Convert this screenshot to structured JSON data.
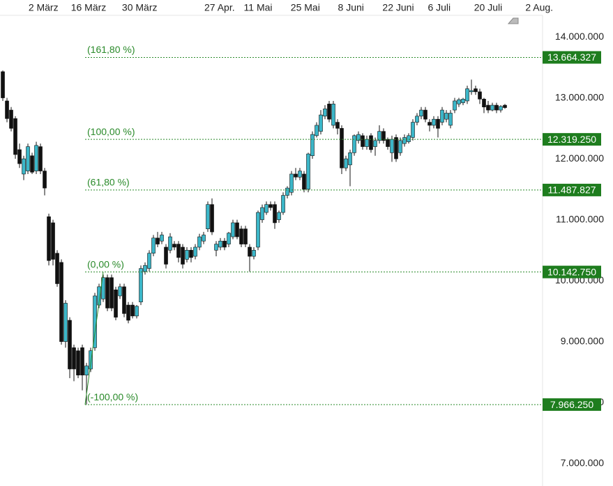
{
  "chart_data": {
    "type": "candlestick",
    "up_color": "#3bb6c8",
    "down_color": "#111111",
    "xlim": [
      -0.67,
      129
    ],
    "xticks": [
      {
        "value": 9.7,
        "label": "2 März"
      },
      {
        "value": 20.5,
        "label": "16 März"
      },
      {
        "value": 32.7,
        "label": "30 März"
      },
      {
        "value": 51.8,
        "label": "27 Apr."
      },
      {
        "value": 61,
        "label": "11 Mai"
      },
      {
        "value": 72.3,
        "label": "25 Mai"
      },
      {
        "value": 83.2,
        "label": "8 Juni"
      },
      {
        "value": 94.5,
        "label": "22 Juni"
      },
      {
        "value": 104.3,
        "label": "6 Juli"
      },
      {
        "value": 116,
        "label": "20 Juli"
      },
      {
        "value": 128.2,
        "label": "2 Aug."
      }
    ],
    "ylim": [
      6630000,
      14355000
    ],
    "yticks": [
      {
        "value": 7000000,
        "label": "7.000.000"
      },
      {
        "value": 8000000,
        "label": "8.000.000"
      },
      {
        "value": 9000000,
        "label": "9.000.000"
      },
      {
        "value": 10000000,
        "label": "10.000.000"
      },
      {
        "value": 11000000,
        "label": "11.000.000"
      },
      {
        "value": 12000000,
        "label": "12.000.000"
      },
      {
        "value": 13000000,
        "label": "13.000.000"
      },
      {
        "value": 14000000,
        "label": "14.000.000"
      }
    ],
    "fib_color": "#2a8a2a",
    "levels": [
      {
        "label": "(161,80 %)",
        "value": 13664327,
        "value_label": "13.664.327"
      },
      {
        "label": "(100,00 %)",
        "value": 12319250,
        "value_label": "12.319.250"
      },
      {
        "label": "(61,80 %)",
        "value": 11487827,
        "value_label": "11.487.827"
      },
      {
        "label": "(0,00 %)",
        "value": 10142750,
        "value_label": "10.142.750"
      },
      {
        "label": "(-100,00 %)",
        "value": 7966250,
        "value_label": "7.966.250"
      }
    ],
    "ohlc": [
      [
        13430000,
        13450000,
        12950000,
        13000000
      ],
      [
        12950000,
        13000000,
        12600000,
        12660000
      ],
      [
        12800000,
        12850000,
        12450000,
        12500000
      ],
      [
        12660000,
        12700000,
        12000000,
        12070000
      ],
      [
        12150000,
        12250000,
        11850000,
        11920000
      ],
      [
        11750000,
        12050000,
        11650000,
        12000000
      ],
      [
        11800000,
        12250000,
        11750000,
        12200000
      ],
      [
        12050000,
        12100000,
        11750000,
        11780000
      ],
      [
        11800000,
        12280000,
        11750000,
        12220000
      ],
      [
        12200000,
        12250000,
        11750000,
        11800000
      ],
      [
        11800000,
        11850000,
        11400000,
        11520000
      ],
      [
        11050000,
        11100000,
        10250000,
        10330000
      ],
      [
        10950000,
        11000000,
        10250000,
        10350000
      ],
      [
        10450000,
        10500000,
        9900000,
        9950000
      ],
      [
        10300000,
        10350000,
        8950000,
        9000000
      ],
      [
        9000000,
        9680000,
        8900000,
        9630000
      ],
      [
        9350000,
        9400000,
        8400000,
        8550000
      ],
      [
        8900000,
        8950000,
        8350000,
        8550000
      ],
      [
        8850000,
        8900000,
        8400000,
        8450000
      ],
      [
        8900000,
        8950000,
        8200000,
        8450000
      ],
      [
        8450000,
        8650000,
        7970000,
        8600000
      ],
      [
        8550000,
        8900000,
        8500000,
        8850000
      ],
      [
        8900000,
        9800000,
        8850000,
        9750000
      ],
      [
        9600000,
        9950000,
        9550000,
        9900000
      ],
      [
        9700000,
        10100000,
        9650000,
        10050000
      ],
      [
        10050000,
        10100000,
        9500000,
        9550000
      ],
      [
        10050000,
        10100000,
        9500000,
        9550000
      ],
      [
        9850000,
        9900000,
        9350000,
        9400000
      ],
      [
        9750000,
        9950000,
        9700000,
        9900000
      ],
      [
        9900000,
        9950000,
        9400000,
        9460000
      ],
      [
        9600000,
        9650000,
        9300000,
        9350000
      ],
      [
        9600000,
        9650000,
        9380000,
        9420000
      ],
      [
        9420000,
        9600000,
        9380000,
        9580000
      ],
      [
        9650000,
        10250000,
        9600000,
        10200000
      ],
      [
        10150000,
        10300000,
        10100000,
        10250000
      ],
      [
        10200000,
        10500000,
        10150000,
        10450000
      ],
      [
        10450000,
        10750000,
        10400000,
        10700000
      ],
      [
        10700000,
        10800000,
        10550000,
        10600000
      ],
      [
        10650000,
        10800000,
        10600000,
        10750000
      ],
      [
        10550000,
        10600000,
        10200000,
        10270000
      ],
      [
        10500000,
        10780000,
        10450000,
        10720000
      ],
      [
        10600000,
        10650000,
        10500000,
        10550000
      ],
      [
        10600000,
        10650000,
        10300000,
        10380000
      ],
      [
        10550000,
        10600000,
        10200000,
        10270000
      ],
      [
        10350000,
        10550000,
        10300000,
        10500000
      ],
      [
        10500000,
        10550000,
        10300000,
        10380000
      ],
      [
        10400000,
        10600000,
        10350000,
        10550000
      ],
      [
        10550000,
        10770000,
        10500000,
        10720000
      ],
      [
        10650000,
        10800000,
        10600000,
        10750000
      ],
      [
        10850000,
        11300000,
        10800000,
        11250000
      ],
      [
        11250000,
        11350000,
        10750000,
        10800000
      ],
      [
        10500000,
        10650000,
        10400000,
        10600000
      ],
      [
        10550000,
        10700000,
        10500000,
        10650000
      ],
      [
        10650000,
        10700000,
        10500000,
        10550000
      ],
      [
        10600000,
        10800000,
        10550000,
        10780000
      ],
      [
        10720000,
        11000000,
        10680000,
        10950000
      ],
      [
        10950000,
        11000000,
        10680000,
        10720000
      ],
      [
        10850000,
        10900000,
        10550000,
        10600000
      ],
      [
        10850000,
        10900000,
        10550000,
        10600000
      ],
      [
        10550000,
        10600000,
        10150000,
        10400000
      ],
      [
        10400000,
        10550000,
        10350000,
        10500000
      ],
      [
        10550000,
        11150000,
        10500000,
        11120000
      ],
      [
        11000000,
        11250000,
        10950000,
        11200000
      ],
      [
        11120000,
        11300000,
        11080000,
        11250000
      ],
      [
        11250000,
        11300000,
        11150000,
        11200000
      ],
      [
        11250000,
        11300000,
        10850000,
        10950000
      ],
      [
        11000000,
        11150000,
        10950000,
        11120000
      ],
      [
        11120000,
        11450000,
        11080000,
        11400000
      ],
      [
        11400000,
        11550000,
        11350000,
        11520000
      ],
      [
        11450000,
        11800000,
        11400000,
        11750000
      ],
      [
        11750000,
        11850000,
        11650000,
        11700000
      ],
      [
        11700000,
        11850000,
        11650000,
        11800000
      ],
      [
        11750000,
        11800000,
        11450000,
        11500000
      ],
      [
        11500000,
        12100000,
        11450000,
        12080000
      ],
      [
        12050000,
        12450000,
        12000000,
        12400000
      ],
      [
        12380000,
        12600000,
        12350000,
        12550000
      ],
      [
        12450000,
        12800000,
        12400000,
        12720000
      ],
      [
        12700000,
        12880000,
        12650000,
        12820000
      ],
      [
        12900000,
        12950000,
        12600000,
        12650000
      ],
      [
        12550000,
        12950000,
        12500000,
        12900000
      ],
      [
        12600000,
        12650000,
        12400000,
        12500000
      ],
      [
        12500000,
        12550000,
        11750000,
        11850000
      ],
      [
        11850000,
        12050000,
        11800000,
        12000000
      ],
      [
        11900000,
        12150000,
        11550000,
        12100000
      ],
      [
        12100000,
        12400000,
        12050000,
        12380000
      ],
      [
        12300000,
        12450000,
        12250000,
        12400000
      ],
      [
        12380000,
        12420000,
        12150000,
        12200000
      ],
      [
        12200000,
        12380000,
        12150000,
        12320000
      ],
      [
        12380000,
        12420000,
        12100000,
        12150000
      ],
      [
        12200000,
        12350000,
        12050000,
        12300000
      ],
      [
        12300000,
        12550000,
        12250000,
        12450000
      ],
      [
        12450000,
        12500000,
        12250000,
        12300000
      ],
      [
        12320000,
        12350000,
        12150000,
        12200000
      ],
      [
        12100000,
        12380000,
        11950000,
        12320000
      ],
      [
        12350000,
        12400000,
        11950000,
        12000000
      ],
      [
        12100000,
        12350000,
        12050000,
        12300000
      ],
      [
        12250000,
        12400000,
        12200000,
        12350000
      ],
      [
        12280000,
        12420000,
        12250000,
        12380000
      ],
      [
        12350000,
        12650000,
        12300000,
        12600000
      ],
      [
        12600000,
        12750000,
        12550000,
        12700000
      ],
      [
        12700000,
        12850000,
        12650000,
        12800000
      ],
      [
        12800000,
        12850000,
        12600000,
        12650000
      ],
      [
        12600000,
        12650000,
        12450000,
        12550000
      ],
      [
        12550000,
        12700000,
        12500000,
        12650000
      ],
      [
        12650000,
        12700000,
        12350000,
        12500000
      ],
      [
        12600000,
        12850000,
        12550000,
        12800000
      ],
      [
        12650000,
        12800000,
        12600000,
        12750000
      ],
      [
        12550000,
        12800000,
        12500000,
        12750000
      ],
      [
        12800000,
        13000000,
        12750000,
        12950000
      ],
      [
        12900000,
        13000000,
        12850000,
        12970000
      ],
      [
        12920000,
        13000000,
        12880000,
        12980000
      ],
      [
        12950000,
        13200000,
        12900000,
        13150000
      ],
      [
        13100000,
        13300000,
        13050000,
        13120000
      ],
      [
        13150000,
        13200000,
        13050000,
        13100000
      ],
      [
        13100000,
        13150000,
        12900000,
        12980000
      ],
      [
        12980000,
        13000000,
        12750000,
        12850000
      ],
      [
        12880000,
        12950000,
        12750000,
        12800000
      ],
      [
        12800000,
        12920000,
        12780000,
        12880000
      ],
      [
        12880000,
        12920000,
        12750000,
        12800000
      ],
      [
        12800000,
        12880000,
        12760000,
        12860000
      ],
      [
        12880000,
        12900000,
        12820000,
        12840000
      ]
    ]
  }
}
